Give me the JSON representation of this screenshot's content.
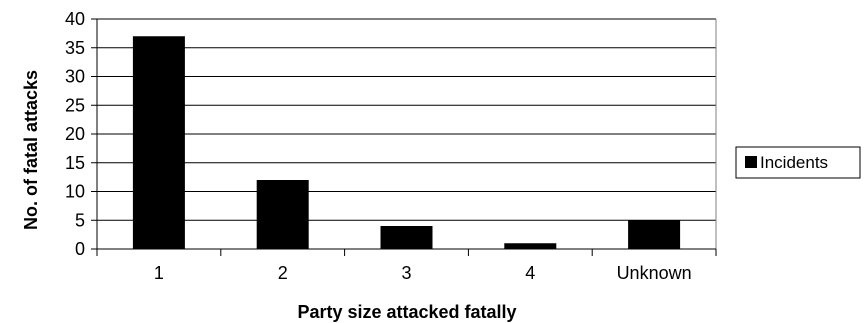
{
  "chart_data": {
    "type": "bar",
    "categories": [
      "1",
      "2",
      "3",
      "4",
      "Unknown"
    ],
    "series": [
      {
        "name": "Incidents",
        "values": [
          37,
          12,
          4,
          1,
          5
        ]
      }
    ],
    "xlabel": "Party size attacked fatally",
    "ylabel": "No. of fatal attacks",
    "ylim": [
      0,
      40
    ],
    "yticks": [
      0,
      5,
      10,
      15,
      20,
      25,
      30,
      35,
      40
    ],
    "grid": true,
    "legend_position": "right",
    "bar_color": "#000000"
  }
}
